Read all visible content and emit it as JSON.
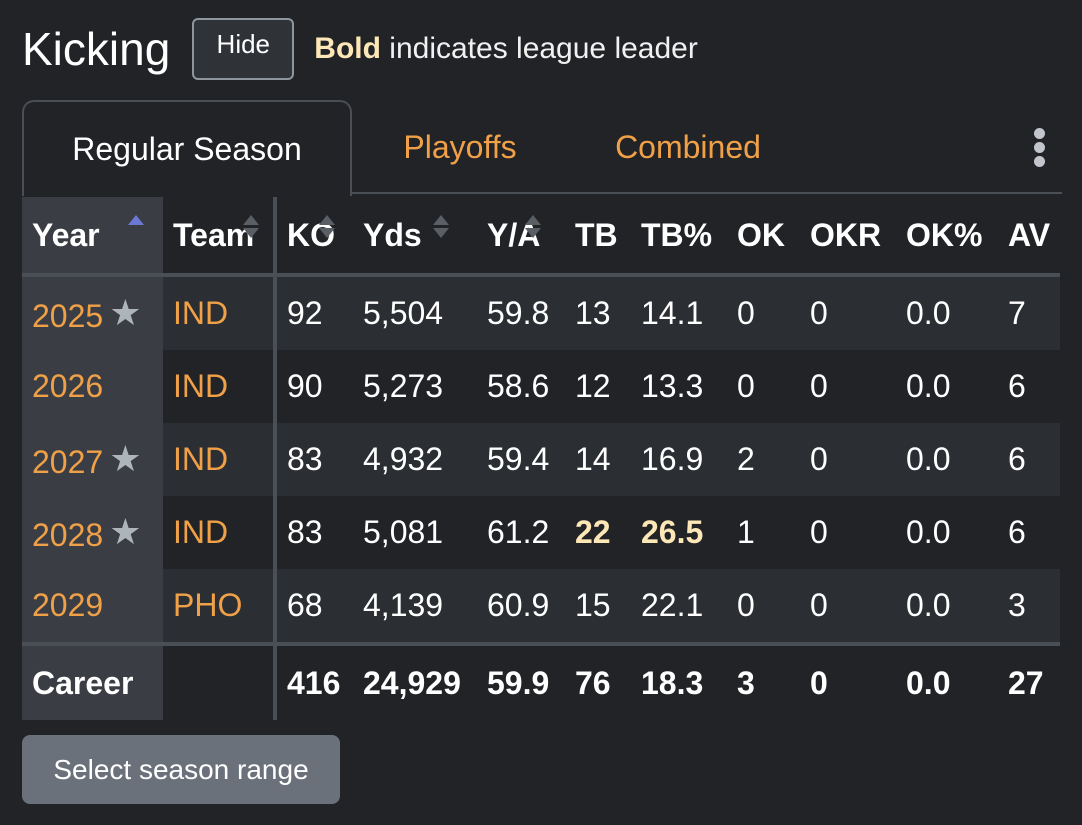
{
  "header": {
    "title": "Kicking",
    "hide_label": "Hide",
    "legend_bold": "Bold",
    "legend_text": " indicates league leader"
  },
  "tabs": [
    {
      "label": "Regular Season",
      "active": true
    },
    {
      "label": "Playoffs",
      "active": false
    },
    {
      "label": "Combined",
      "active": false
    }
  ],
  "table": {
    "columns": [
      "Year",
      "Team",
      "KO",
      "Yds",
      "Y/A",
      "TB",
      "TB%",
      "OK",
      "OKR",
      "OK%",
      "AV"
    ],
    "sort": {
      "column": "Year",
      "direction": "ascending"
    },
    "rows": [
      {
        "year": "2025",
        "star": "★",
        "team": "IND",
        "ko": "92",
        "yds": "5,504",
        "ya": "59.8",
        "tb": "13",
        "tbp": "14.1",
        "ok": "0",
        "okr": "0",
        "okp": "0.0",
        "av": "7"
      },
      {
        "year": "2026",
        "star": "",
        "team": "IND",
        "ko": "90",
        "yds": "5,273",
        "ya": "58.6",
        "tb": "12",
        "tbp": "13.3",
        "ok": "0",
        "okr": "0",
        "okp": "0.0",
        "av": "6"
      },
      {
        "year": "2027",
        "star": "★",
        "team": "IND",
        "ko": "83",
        "yds": "4,932",
        "ya": "59.4",
        "tb": "14",
        "tbp": "16.9",
        "ok": "2",
        "okr": "0",
        "okp": "0.0",
        "av": "6"
      },
      {
        "year": "2028",
        "star": "★",
        "team": "IND",
        "ko": "83",
        "yds": "5,081",
        "ya": "61.2",
        "tb": "22",
        "tbp": "26.5",
        "ok": "1",
        "okr": "0",
        "okp": "0.0",
        "av": "6",
        "leaders": [
          "tb",
          "tbp"
        ]
      },
      {
        "year": "2029",
        "star": "",
        "team": "PHO",
        "ko": "68",
        "yds": "4,139",
        "ya": "60.9",
        "tb": "15",
        "tbp": "22.1",
        "ok": "0",
        "okr": "0",
        "okp": "0.0",
        "av": "3"
      }
    ],
    "footer": {
      "year": "Career",
      "team": "",
      "ko": "416",
      "yds": "24,929",
      "ya": "59.9",
      "tb": "76",
      "tbp": "18.3",
      "ok": "3",
      "okr": "0",
      "okp": "0.0",
      "av": "27"
    }
  },
  "range_button_label": "Select season range",
  "colors": {
    "background": "#212327",
    "link": "#f0a148",
    "leader": "#fde7b6",
    "sort_active": "#6b78d6"
  }
}
